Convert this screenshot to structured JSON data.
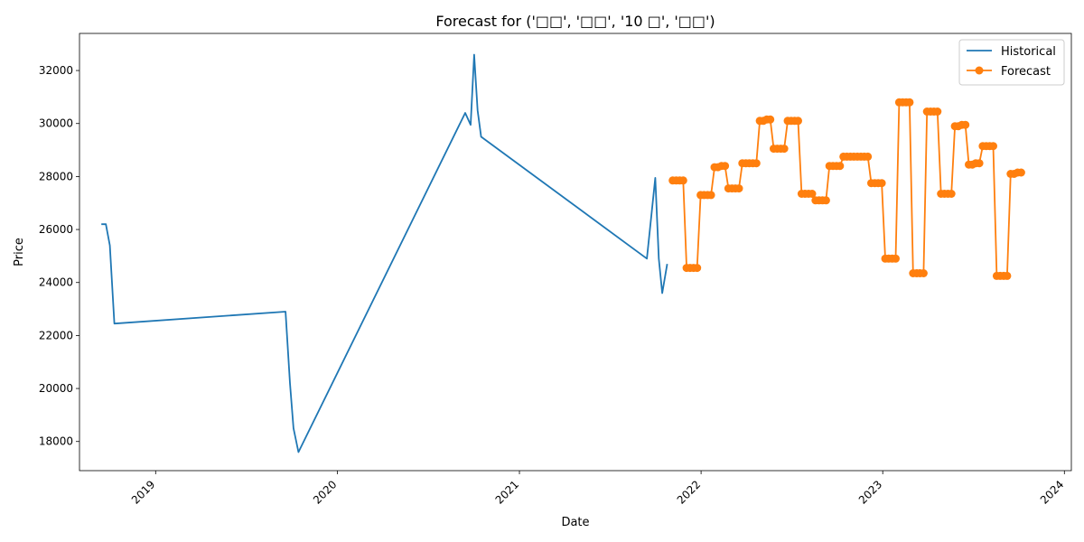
{
  "chart_data": {
    "type": "line",
    "title": "Forecast for ('□□', '□□', '10 □', '□□')",
    "xlabel": "Date",
    "ylabel": "Price",
    "xlim": [
      "2018-08-01",
      "2024-01-15"
    ],
    "ylim": [
      16900,
      33400
    ],
    "y_ticks": [
      18000,
      20000,
      22000,
      24000,
      26000,
      28000,
      30000,
      32000
    ],
    "x_ticks": [
      "2019-01-01",
      "2020-01-01",
      "2021-01-01",
      "2022-01-01",
      "2023-01-01",
      "2024-01-01"
    ],
    "x_tick_labels": [
      "2019",
      "2020",
      "2021",
      "2022",
      "2023",
      "2024"
    ],
    "x_tick_rotation": 45,
    "legend": {
      "position": "top-right",
      "entries": [
        "Historical",
        "Forecast"
      ]
    },
    "grid": false,
    "series": [
      {
        "name": "Historical",
        "color": "#1f77b4",
        "marker": "none",
        "points": [
          [
            "2018-09-14",
            26200
          ],
          [
            "2018-09-23",
            26200
          ],
          [
            "2018-10-01",
            25400
          ],
          [
            "2018-10-10",
            22450
          ],
          [
            "2019-09-19",
            22900
          ],
          [
            "2019-09-28",
            20200
          ],
          [
            "2019-10-05",
            18500
          ],
          [
            "2019-10-15",
            17600
          ],
          [
            "2020-09-14",
            30400
          ],
          [
            "2020-09-25",
            29950
          ],
          [
            "2020-10-02",
            32600
          ],
          [
            "2020-10-09",
            30500
          ],
          [
            "2020-10-16",
            29500
          ],
          [
            "2021-09-14",
            24900
          ],
          [
            "2021-09-24",
            26700
          ],
          [
            "2021-10-01",
            27950
          ],
          [
            "2021-10-08",
            24900
          ],
          [
            "2021-10-15",
            23600
          ],
          [
            "2021-10-25",
            24700
          ]
        ]
      },
      {
        "name": "Forecast",
        "color": "#ff7f0e",
        "marker": "circle",
        "points": [
          [
            "2021-11-05",
            27850
          ],
          [
            "2021-11-12",
            27850
          ],
          [
            "2021-11-19",
            27850
          ],
          [
            "2021-11-26",
            27850
          ],
          [
            "2021-12-03",
            24550
          ],
          [
            "2021-12-10",
            24550
          ],
          [
            "2021-12-17",
            24550
          ],
          [
            "2021-12-24",
            24550
          ],
          [
            "2021-12-31",
            27300
          ],
          [
            "2022-01-07",
            27300
          ],
          [
            "2022-01-14",
            27300
          ],
          [
            "2022-01-21",
            27300
          ],
          [
            "2022-01-28",
            28350
          ],
          [
            "2022-02-04",
            28350
          ],
          [
            "2022-02-11",
            28400
          ],
          [
            "2022-02-18",
            28400
          ],
          [
            "2022-02-25",
            27550
          ],
          [
            "2022-03-04",
            27550
          ],
          [
            "2022-03-11",
            27550
          ],
          [
            "2022-03-18",
            27550
          ],
          [
            "2022-03-25",
            28500
          ],
          [
            "2022-04-01",
            28500
          ],
          [
            "2022-04-08",
            28500
          ],
          [
            "2022-04-15",
            28500
          ],
          [
            "2022-04-22",
            28500
          ],
          [
            "2022-04-29",
            30100
          ],
          [
            "2022-05-06",
            30100
          ],
          [
            "2022-05-13",
            30150
          ],
          [
            "2022-05-20",
            30150
          ],
          [
            "2022-05-27",
            29050
          ],
          [
            "2022-06-03",
            29050
          ],
          [
            "2022-06-10",
            29050
          ],
          [
            "2022-06-17",
            29050
          ],
          [
            "2022-06-24",
            30100
          ],
          [
            "2022-07-01",
            30100
          ],
          [
            "2022-07-08",
            30100
          ],
          [
            "2022-07-15",
            30100
          ],
          [
            "2022-07-22",
            27350
          ],
          [
            "2022-07-29",
            27350
          ],
          [
            "2022-08-05",
            27350
          ],
          [
            "2022-08-12",
            27350
          ],
          [
            "2022-08-19",
            27100
          ],
          [
            "2022-08-26",
            27100
          ],
          [
            "2022-09-02",
            27100
          ],
          [
            "2022-09-09",
            27100
          ],
          [
            "2022-09-16",
            28400
          ],
          [
            "2022-09-23",
            28400
          ],
          [
            "2022-09-30",
            28400
          ],
          [
            "2022-10-07",
            28400
          ],
          [
            "2022-10-14",
            28750
          ],
          [
            "2022-10-21",
            28750
          ],
          [
            "2022-10-28",
            28750
          ],
          [
            "2022-11-04",
            28750
          ],
          [
            "2022-11-11",
            28750
          ],
          [
            "2022-11-18",
            28750
          ],
          [
            "2022-11-25",
            28750
          ],
          [
            "2022-12-02",
            28750
          ],
          [
            "2022-12-09",
            27750
          ],
          [
            "2022-12-16",
            27750
          ],
          [
            "2022-12-23",
            27750
          ],
          [
            "2022-12-30",
            27750
          ],
          [
            "2023-01-06",
            24900
          ],
          [
            "2023-01-13",
            24900
          ],
          [
            "2023-01-20",
            24900
          ],
          [
            "2023-01-27",
            24900
          ],
          [
            "2023-02-03",
            30800
          ],
          [
            "2023-02-10",
            30800
          ],
          [
            "2023-02-17",
            30800
          ],
          [
            "2023-02-24",
            30800
          ],
          [
            "2023-03-03",
            24350
          ],
          [
            "2023-03-10",
            24350
          ],
          [
            "2023-03-17",
            24350
          ],
          [
            "2023-03-24",
            24350
          ],
          [
            "2023-03-31",
            30450
          ],
          [
            "2023-04-07",
            30450
          ],
          [
            "2023-04-14",
            30450
          ],
          [
            "2023-04-21",
            30450
          ],
          [
            "2023-04-28",
            27350
          ],
          [
            "2023-05-05",
            27350
          ],
          [
            "2023-05-12",
            27350
          ],
          [
            "2023-05-19",
            27350
          ],
          [
            "2023-05-26",
            29900
          ],
          [
            "2023-06-02",
            29900
          ],
          [
            "2023-06-09",
            29950
          ],
          [
            "2023-06-16",
            29950
          ],
          [
            "2023-06-23",
            28450
          ],
          [
            "2023-06-30",
            28450
          ],
          [
            "2023-07-07",
            28500
          ],
          [
            "2023-07-14",
            28500
          ],
          [
            "2023-07-21",
            29150
          ],
          [
            "2023-07-28",
            29150
          ],
          [
            "2023-08-04",
            29150
          ],
          [
            "2023-08-11",
            29150
          ],
          [
            "2023-08-18",
            24250
          ],
          [
            "2023-08-25",
            24250
          ],
          [
            "2023-09-01",
            24250
          ],
          [
            "2023-09-08",
            24250
          ],
          [
            "2023-09-15",
            28100
          ],
          [
            "2023-09-22",
            28100
          ],
          [
            "2023-09-29",
            28150
          ],
          [
            "2023-10-06",
            28150
          ]
        ]
      }
    ]
  }
}
